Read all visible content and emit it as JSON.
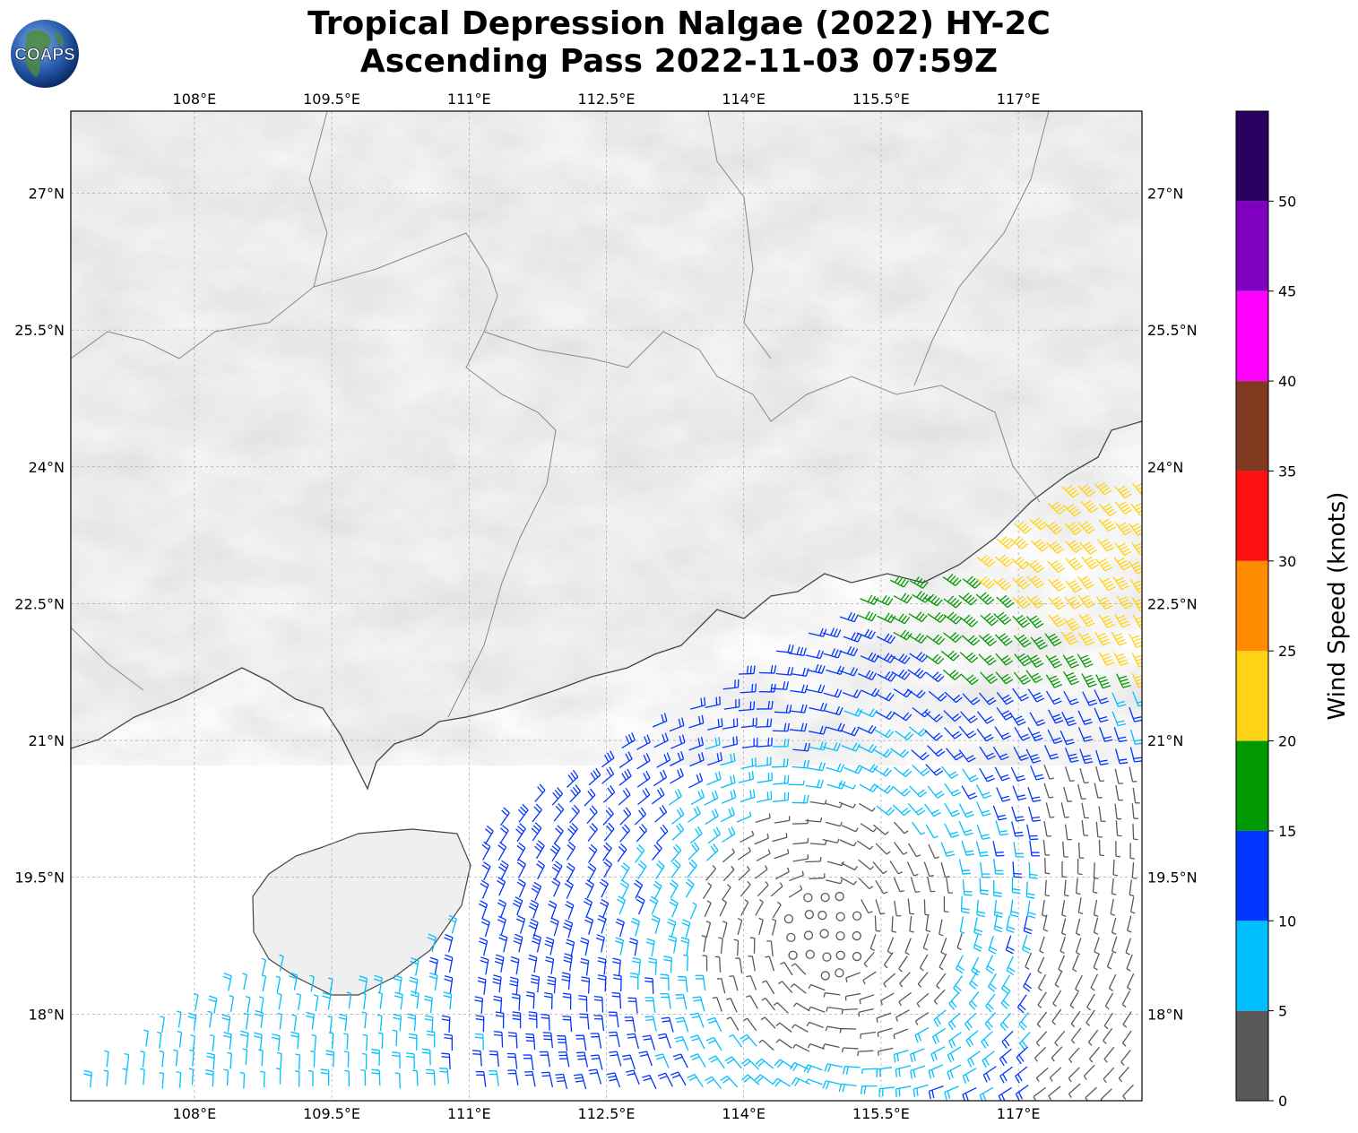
{
  "title": {
    "line1": "Tropical Depression Nalgae (2022) HY-2C",
    "line2": "Ascending Pass 2022-11-03 07:59Z"
  },
  "logo": {
    "text": "COAPS",
    "icon": "globe-logo-icon"
  },
  "map": {
    "lon_ticks": [
      "108°E",
      "109.5°E",
      "111°E",
      "112.5°E",
      "114°E",
      "115.5°E",
      "117°E"
    ],
    "lat_ticks": [
      "27°N",
      "25.5°N",
      "24°N",
      "22.5°N",
      "21°N",
      "19.5°N",
      "18°N"
    ],
    "lon_values": [
      108,
      109.5,
      111,
      112.5,
      114,
      115.5,
      117
    ],
    "lat_values": [
      27,
      25.5,
      24,
      22.5,
      21,
      19.5,
      18
    ],
    "extent": {
      "lon": [
        106.65,
        118.35
      ],
      "lat": [
        17.05,
        27.9
      ]
    },
    "grid": true
  },
  "colorbar": {
    "label": "Wind Speed (knots)",
    "tick_labels": [
      "0",
      "5",
      "10",
      "15",
      "20",
      "25",
      "30",
      "35",
      "40",
      "45",
      "50"
    ],
    "range": [
      0,
      55
    ],
    "bins": [
      {
        "from": 0,
        "to": 5,
        "color": "#595959"
      },
      {
        "from": 5,
        "to": 10,
        "color": "#00bfff"
      },
      {
        "from": 10,
        "to": 15,
        "color": "#0035ff"
      },
      {
        "from": 15,
        "to": 20,
        "color": "#009900"
      },
      {
        "from": 20,
        "to": 25,
        "color": "#ffd315"
      },
      {
        "from": 25,
        "to": 30,
        "color": "#ff8c00"
      },
      {
        "from": 30,
        "to": 35,
        "color": "#ff1010"
      },
      {
        "from": 35,
        "to": 40,
        "color": "#80391f"
      },
      {
        "from": 40,
        "to": 45,
        "color": "#ff00ff"
      },
      {
        "from": 45,
        "to": 50,
        "color": "#8000c0"
      },
      {
        "from": 50,
        "to": 55,
        "color": "#2a0060"
      }
    ]
  }
}
